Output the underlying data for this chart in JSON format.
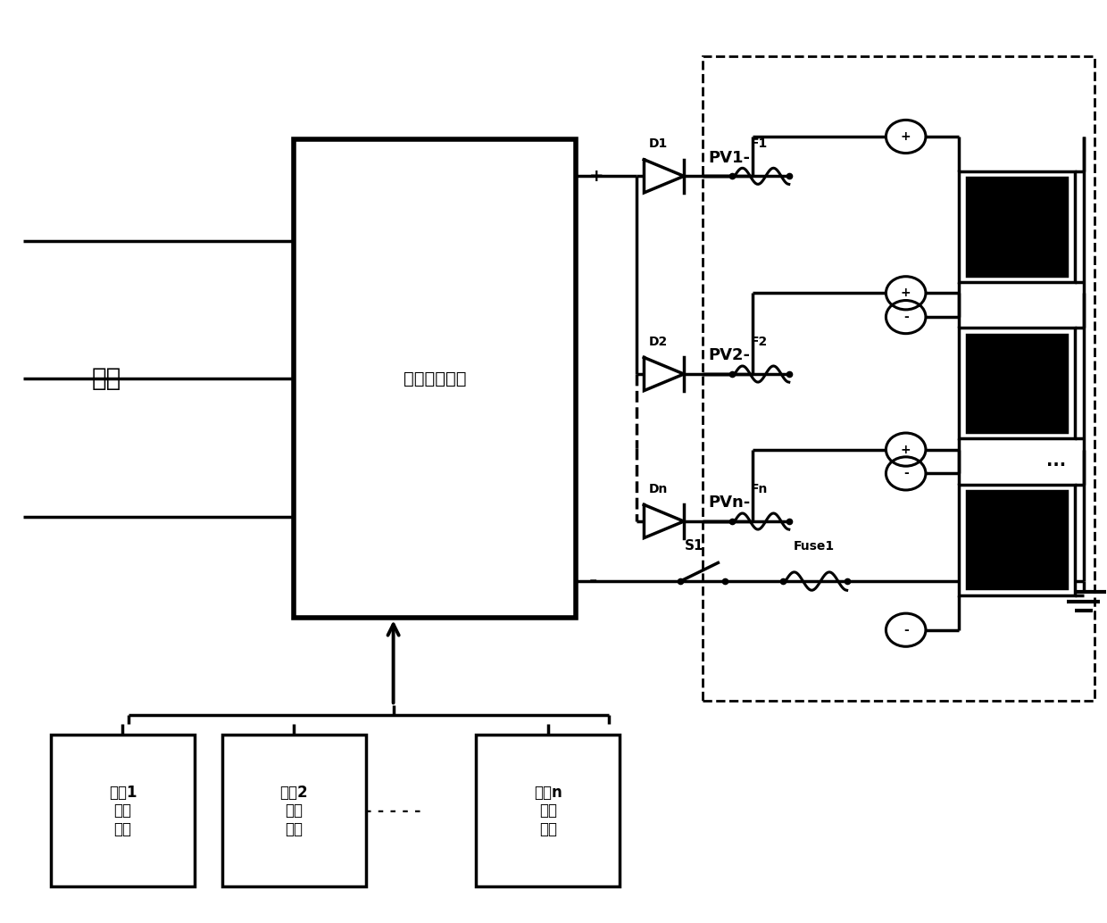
{
  "bg": "#ffffff",
  "lc": "#000000",
  "lw": 2.5,
  "fig_w": 12.4,
  "fig_h": 10.34,
  "psu_label": "高频开关电源",
  "grid_label": "电网",
  "batt_labels": [
    "电氟1\n电压\n采样",
    "电氟2\n电压\n采样",
    "电氟n\n电压\n采样"
  ],
  "pv_labels": [
    "PV1-",
    "PV2-",
    "PVn-"
  ],
  "d_labels": [
    "D1",
    "D2",
    "Dn"
  ],
  "f_labels": [
    "F1",
    "F2",
    "Fn"
  ],
  "s_label": "S1",
  "fuse1_label": "Fuse1",
  "plus_label": "+",
  "minus_label": "-",
  "dashes_label": "- - - - -",
  "dots_label": "…"
}
